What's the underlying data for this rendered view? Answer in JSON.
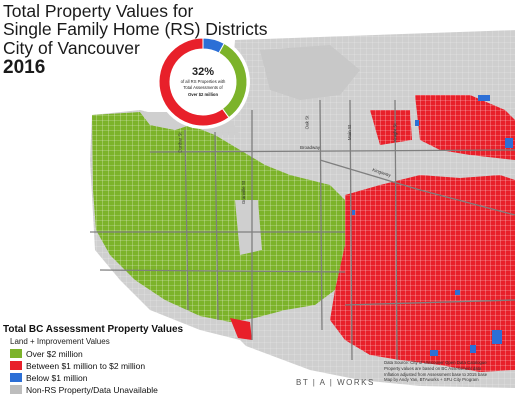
{
  "title": {
    "line1": "Total Property Values for",
    "line2": "Single Family Home (RS) Districts",
    "line3": "City of Vancouver",
    "year": "2016"
  },
  "donut": {
    "percent_label": "32%",
    "caption_line1": "of all RS Properties with",
    "caption_line2": "Total Assessments of",
    "caption_line3": "Over $2 million",
    "share_over_2m": 0.32,
    "share_between": 0.6,
    "share_below_1m": 0.08
  },
  "road_labels": {
    "broadway": "Broadway",
    "kingsway": "Kingsway",
    "granville": "Granville St",
    "main": "Main St",
    "knight": "Knight St",
    "oak": "Oak St",
    "dunbar": "Dunbar St"
  },
  "legend": {
    "title": "Total BC Assessment Property Values",
    "subtitle": "Land + Improvement Values",
    "items": [
      {
        "label": "Over $2 million",
        "color": "#7cb32a"
      },
      {
        "label": "Between $1 million to $2 million",
        "color": "#e8202a"
      },
      {
        "label": "Below $1 million",
        "color": "#2c6fd6"
      },
      {
        "label": "Non-RS Property/Data Unavailable",
        "color": "#bdbdbd"
      }
    ]
  },
  "logo_text": "BT | A | WORKS",
  "credits": {
    "line1": "Data Source: City of Vancouver Open Data Catalogue",
    "line2": "Property values are based on BC Assessment data",
    "line3": "Inflation adjusted from Assessment base to 2015 base",
    "line4": "Map by Andy Yan, BTAworks + SFU City Program"
  },
  "colors": {
    "water": "#ffffff",
    "land": "#d6d6d6",
    "green": "#7cb32a",
    "red": "#e8202a",
    "blue": "#2c6fd6",
    "grey": "#bdbdbd",
    "road": "#8a8a8a"
  }
}
